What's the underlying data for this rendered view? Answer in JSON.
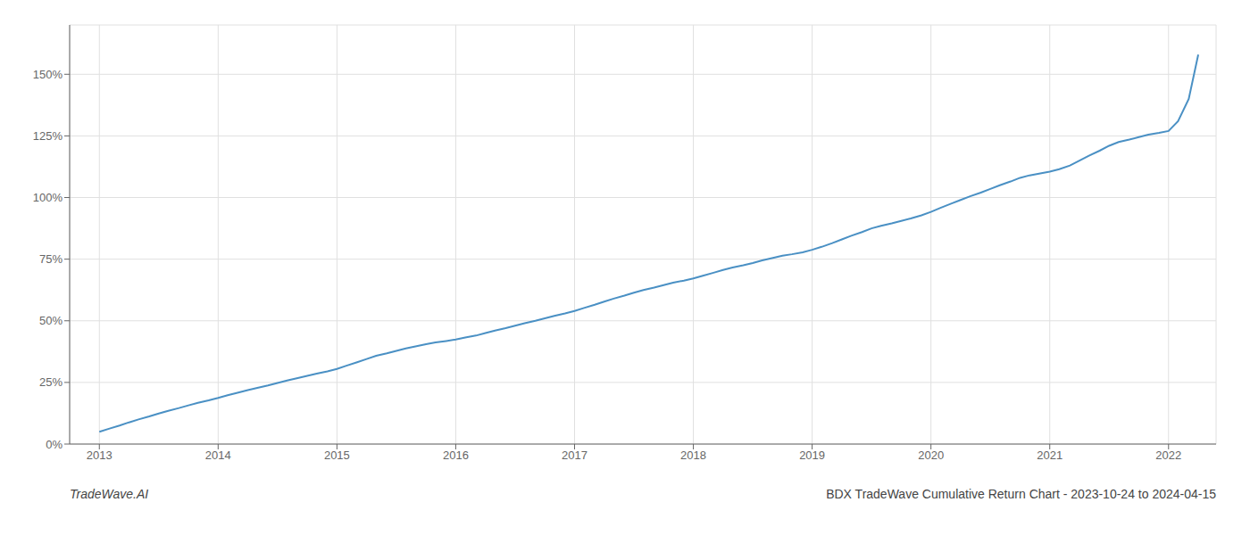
{
  "chart_data": {
    "type": "line",
    "title": "BDX TradeWave Cumulative Return Chart - 2023-10-24 to 2024-04-15",
    "annotations": [
      "TradeWave.AI"
    ],
    "color": "#4a90c4",
    "grid": true,
    "xlim": [
      2012.75,
      2022.4
    ],
    "ylim": [
      0,
      170
    ],
    "xticks": [
      2013,
      2014,
      2015,
      2016,
      2017,
      2018,
      2019,
      2020,
      2021,
      2022
    ],
    "yticks": [
      {
        "value": 0,
        "label": "0%"
      },
      {
        "value": 25,
        "label": "25%"
      },
      {
        "value": 50,
        "label": "50%"
      },
      {
        "value": 75,
        "label": "75%"
      },
      {
        "value": 100,
        "label": "100%"
      },
      {
        "value": 125,
        "label": "125%"
      },
      {
        "value": 150,
        "label": "150%"
      }
    ],
    "x": [
      2013.0,
      2013.08,
      2013.17,
      2013.25,
      2013.33,
      2013.42,
      2013.5,
      2013.58,
      2013.67,
      2013.75,
      2013.83,
      2013.92,
      2014.0,
      2014.08,
      2014.17,
      2014.25,
      2014.33,
      2014.42,
      2014.5,
      2014.58,
      2014.67,
      2014.75,
      2014.83,
      2014.92,
      2015.0,
      2015.08,
      2015.17,
      2015.25,
      2015.33,
      2015.42,
      2015.5,
      2015.58,
      2015.67,
      2015.75,
      2015.83,
      2015.92,
      2016.0,
      2016.08,
      2016.17,
      2016.25,
      2016.33,
      2016.42,
      2016.5,
      2016.58,
      2016.67,
      2016.75,
      2016.83,
      2016.92,
      2017.0,
      2017.08,
      2017.17,
      2017.25,
      2017.33,
      2017.42,
      2017.5,
      2017.58,
      2017.67,
      2017.75,
      2017.83,
      2017.92,
      2018.0,
      2018.08,
      2018.17,
      2018.25,
      2018.33,
      2018.42,
      2018.5,
      2018.58,
      2018.67,
      2018.75,
      2018.83,
      2018.92,
      2019.0,
      2019.08,
      2019.17,
      2019.25,
      2019.33,
      2019.42,
      2019.5,
      2019.58,
      2019.67,
      2019.75,
      2019.83,
      2019.92,
      2020.0,
      2020.08,
      2020.17,
      2020.25,
      2020.33,
      2020.42,
      2020.5,
      2020.58,
      2020.67,
      2020.75,
      2020.83,
      2020.92,
      2021.0,
      2021.08,
      2021.17,
      2021.25,
      2021.33,
      2021.42,
      2021.5,
      2021.58,
      2021.67,
      2021.75,
      2021.83,
      2021.92,
      2022.0,
      2022.08,
      2022.17,
      2022.25
    ],
    "values": [
      5.0,
      6.2,
      7.5,
      8.8,
      10.0,
      11.2,
      12.4,
      13.5,
      14.6,
      15.7,
      16.7,
      17.7,
      18.7,
      19.8,
      20.9,
      21.9,
      22.8,
      23.8,
      24.8,
      25.8,
      26.8,
      27.7,
      28.6,
      29.5,
      30.5,
      31.8,
      33.2,
      34.5,
      35.8,
      36.8,
      37.8,
      38.8,
      39.7,
      40.5,
      41.2,
      41.8,
      42.4,
      43.2,
      44.0,
      45.0,
      46.0,
      47.0,
      48.0,
      49.0,
      50.0,
      51.0,
      52.0,
      53.0,
      54.0,
      55.2,
      56.5,
      57.8,
      59.0,
      60.2,
      61.4,
      62.5,
      63.5,
      64.5,
      65.5,
      66.3,
      67.2,
      68.3,
      69.5,
      70.6,
      71.6,
      72.5,
      73.4,
      74.5,
      75.5,
      76.4,
      77.0,
      77.8,
      78.8,
      80.0,
      81.5,
      83.0,
      84.5,
      86.0,
      87.5,
      88.5,
      89.5,
      90.5,
      91.5,
      92.8,
      94.2,
      95.8,
      97.5,
      99.0,
      100.5,
      102.0,
      103.5,
      105.0,
      106.5,
      108.0,
      109.0,
      109.8,
      110.5,
      111.5,
      113.0,
      115.0,
      117.0,
      119.0,
      121.0,
      122.5,
      123.5,
      124.5,
      125.5,
      126.2,
      127.0,
      131.0,
      140.0,
      158.0
    ]
  }
}
